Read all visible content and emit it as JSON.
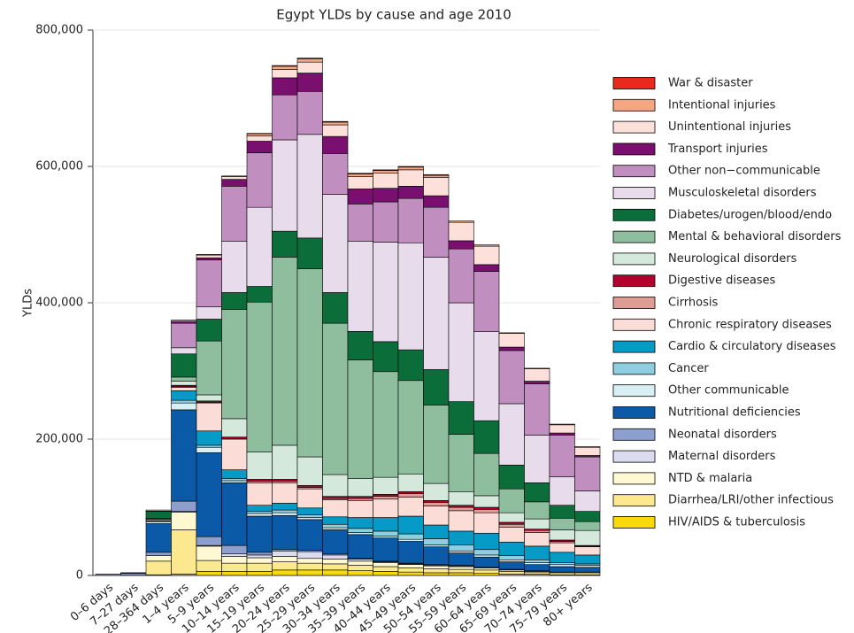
{
  "chart_data": {
    "type": "stacked_bar",
    "title": "Egypt YLDs by cause and age 2010",
    "y_label": "YLDs",
    "categories": [
      "0–6 days",
      "7–27 days",
      "28–364 days",
      "1–4 years",
      "5–9 years",
      "10–14 years",
      "15–19 years",
      "20–24 years",
      "25–29 years",
      "30–34 years",
      "35–39 years",
      "40–44 years",
      "45–49 years",
      "50–54 years",
      "55–59 years",
      "60–64 years",
      "65–69 years",
      "70–74 years",
      "75–79 years",
      "80+ years"
    ],
    "ylim": [
      0,
      800000
    ],
    "yticks": [
      0,
      {
        "value": 200000,
        "label": "200,000"
      },
      {
        "value": 400000,
        "label": "400,000"
      },
      {
        "value": 600000,
        "label": "600,000"
      },
      {
        "value": 800000,
        "label": "800,000"
      }
    ],
    "grid": true,
    "series": [
      {
        "name": "HIV/AIDS & tuberculosis",
        "color": "#f8d90a",
        "values": [
          0,
          0,
          1000,
          2000,
          6000,
          6000,
          6000,
          8000,
          8000,
          8000,
          7000,
          6000,
          5000,
          4000,
          4000,
          3000,
          2000,
          2000,
          1000,
          1000
        ]
      },
      {
        "name": "Diarrhea/LRI/other infectious",
        "color": "#fbe88f",
        "values": [
          200,
          500,
          20000,
          65000,
          16000,
          12000,
          12000,
          12000,
          10000,
          9000,
          8000,
          7000,
          6000,
          6000,
          5000,
          5000,
          4000,
          3000,
          3000,
          3000
        ]
      },
      {
        "name": "NTD & malaria",
        "color": "#fff9d3",
        "values": [
          0,
          0,
          8000,
          26000,
          21000,
          10000,
          8000,
          8000,
          7000,
          7000,
          6000,
          6000,
          5000,
          4000,
          4000,
          3000,
          2000,
          1000,
          1000,
          1000
        ]
      },
      {
        "name": "Maternal disorders",
        "color": "#dcdcf0",
        "values": [
          0,
          0,
          0,
          1000,
          1000,
          4000,
          4000,
          8000,
          10000,
          6000,
          3000,
          1000,
          1000,
          1000,
          1000,
          0,
          0,
          0,
          0,
          0
        ]
      },
      {
        "name": "Neonatal disorders",
        "color": "#8c9fce",
        "values": [
          1500,
          2500,
          5000,
          15000,
          13000,
          12000,
          4000,
          2000,
          2000,
          2000,
          1000,
          1000,
          1000,
          1000,
          1000,
          1000,
          1000,
          1000,
          0,
          0
        ]
      },
      {
        "name": "Nutritional deficiencies",
        "color": "#0a5aa8",
        "values": [
          100,
          800,
          42000,
          134000,
          123000,
          92000,
          53000,
          50000,
          45000,
          35000,
          35000,
          34000,
          32000,
          26000,
          18000,
          15000,
          11000,
          9000,
          8000,
          7000
        ]
      },
      {
        "name": "Other communicable",
        "color": "#d8f0f3",
        "values": [
          0,
          0,
          3000,
          10000,
          8000,
          3000,
          4000,
          4000,
          3000,
          3000,
          3000,
          3000,
          3000,
          3000,
          3000,
          3000,
          3000,
          3000,
          3000,
          3000
        ]
      },
      {
        "name": "Cancer",
        "color": "#8fcde1",
        "values": [
          0,
          0,
          500,
          4000,
          3000,
          3000,
          3000,
          4000,
          4000,
          5000,
          6000,
          7000,
          8000,
          9000,
          9000,
          8000,
          6000,
          4000,
          3000,
          2000
        ]
      },
      {
        "name": "Cardio & circulatory diseases",
        "color": "#069bc7",
        "values": [
          0,
          0,
          1000,
          14000,
          21000,
          13000,
          9000,
          10000,
          10000,
          11000,
          16000,
          20000,
          26000,
          20000,
          20000,
          24000,
          20000,
          20000,
          15000,
          13000
        ]
      },
      {
        "name": "Chronic respiratory diseases",
        "color": "#fbdcd6",
        "values": [
          0,
          0,
          2000,
          5000,
          41000,
          45000,
          33000,
          30000,
          28000,
          25000,
          25000,
          27000,
          28000,
          28000,
          30000,
          30000,
          22000,
          20000,
          14000,
          12000
        ]
      },
      {
        "name": "Cirrhosis",
        "color": "#dd9c94",
        "values": [
          0,
          0,
          0,
          1000,
          1000,
          1000,
          2000,
          2000,
          2000,
          2000,
          3000,
          4000,
          5000,
          5000,
          5000,
          5000,
          4000,
          3000,
          2000,
          1000
        ]
      },
      {
        "name": "Digestive diseases",
        "color": "#b2002e",
        "values": [
          0,
          0,
          500,
          2000,
          2000,
          2000,
          3000,
          3000,
          3000,
          3000,
          3000,
          3000,
          3000,
          3000,
          3000,
          3000,
          3000,
          2000,
          2000,
          1000
        ]
      },
      {
        "name": "Neurological disorders",
        "color": "#d4e9dc",
        "values": [
          0,
          0,
          1000,
          6000,
          9000,
          27000,
          40000,
          50000,
          42000,
          32000,
          26000,
          25000,
          26000,
          25000,
          20000,
          17000,
          14000,
          15000,
          15000,
          22000
        ]
      },
      {
        "name": "Mental & behavioral disorders",
        "color": "#8fbe9f",
        "values": [
          0,
          0,
          0,
          6000,
          79000,
          160000,
          220000,
          276000,
          276000,
          222000,
          174000,
          155000,
          137000,
          115000,
          84000,
          62000,
          35000,
          25000,
          17000,
          13000
        ]
      },
      {
        "name": "Diabetes/urogen/blood/endo",
        "color": "#0b6e3a",
        "values": [
          0,
          0,
          10000,
          34000,
          32000,
          25000,
          23000,
          38000,
          45000,
          45000,
          42000,
          44000,
          45000,
          52000,
          48000,
          48000,
          35000,
          28000,
          19000,
          15000
        ]
      },
      {
        "name": "Musculoskeletal disorders",
        "color": "#e8dcec",
        "values": [
          0,
          0,
          0,
          9000,
          18000,
          75000,
          116000,
          134000,
          152000,
          144000,
          132000,
          146000,
          157000,
          165000,
          145000,
          131000,
          90000,
          70000,
          42000,
          30000
        ]
      },
      {
        "name": "Other non−communicable",
        "color": "#c08fbf",
        "values": [
          0,
          0,
          500,
          36000,
          69000,
          81000,
          80000,
          66000,
          63000,
          60000,
          55000,
          59000,
          65000,
          73000,
          79000,
          88000,
          78000,
          75000,
          61000,
          50000
        ]
      },
      {
        "name": "Transport injuries",
        "color": "#7b0f6f",
        "values": [
          0,
          0,
          0,
          2000,
          3000,
          10000,
          17000,
          25000,
          27000,
          25000,
          22000,
          20000,
          18000,
          17000,
          12000,
          10000,
          5000,
          4000,
          3000,
          2000
        ]
      },
      {
        "name": "Unintentional injuries",
        "color": "#fde0d9",
        "values": [
          0,
          200,
          1500,
          2000,
          4000,
          4000,
          8000,
          12000,
          16000,
          17000,
          18000,
          22000,
          24000,
          27000,
          27000,
          27000,
          20000,
          18000,
          12000,
          12000
        ]
      },
      {
        "name": "Intentional injuries",
        "color": "#f4a582",
        "values": [
          0,
          0,
          0,
          500,
          1000,
          1000,
          3000,
          5000,
          5000,
          4000,
          4000,
          4000,
          4000,
          3000,
          2000,
          2000,
          1000,
          1000,
          1000,
          1000
        ]
      },
      {
        "name": "War & disaster",
        "color": "#e8291c",
        "values": [
          0,
          0,
          0,
          0,
          0,
          0,
          500,
          1000,
          1000,
          1000,
          1000,
          1000,
          1000,
          1000,
          0,
          0,
          0,
          0,
          0,
          0
        ]
      }
    ]
  }
}
